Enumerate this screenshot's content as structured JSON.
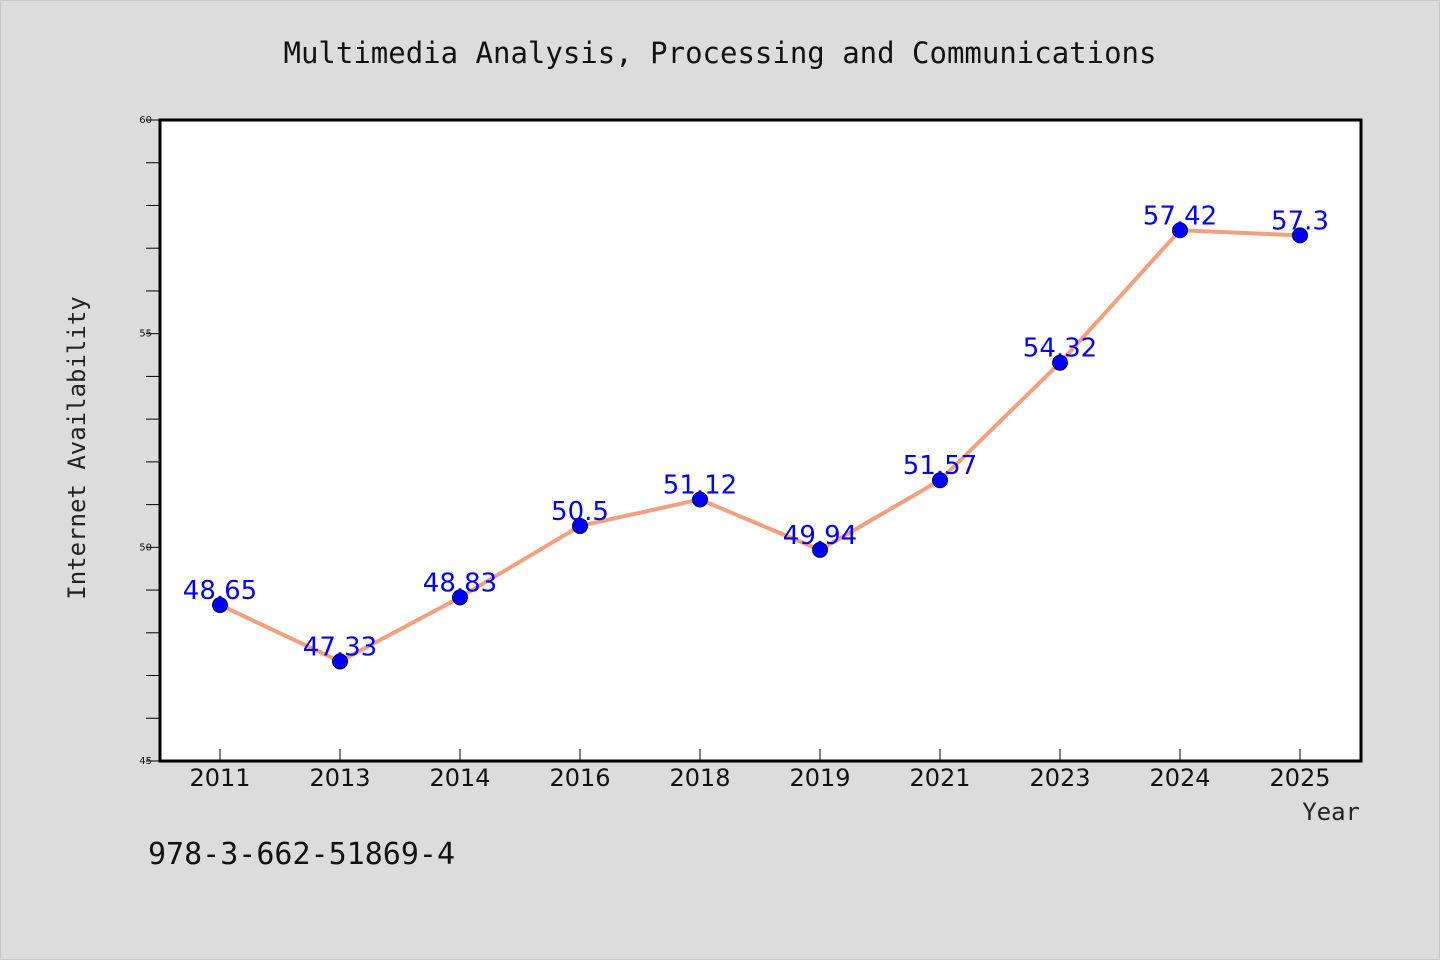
{
  "chart_data": {
    "type": "line",
    "title": "Multimedia Analysis, Processing and Communications",
    "xlabel": "Year",
    "ylabel": "Internet Availability",
    "categories": [
      "2011",
      "2013",
      "2014",
      "2016",
      "2018",
      "2019",
      "2021",
      "2023",
      "2024",
      "2025"
    ],
    "series": [
      {
        "values": [
          48.65,
          47.33,
          48.83,
          50.5,
          51.12,
          49.94,
          51.57,
          54.32,
          57.42,
          57.3
        ],
        "data_labels": [
          "48.65",
          "47.33",
          "48.83",
          "50.5",
          "51.12",
          "49.94",
          "51.57",
          "54.32",
          "57.42",
          "57.3"
        ],
        "line_color": "#f4a07e",
        "marker_color": "#0000ff"
      }
    ],
    "ylim": [
      45,
      60
    ],
    "yticks": [
      "45",
      "50",
      "55",
      "60"
    ],
    "yticks_values": [
      45,
      50,
      55,
      60
    ],
    "grid": false,
    "legend": "none"
  },
  "footer": {
    "isbn": "978-3-662-51869-4"
  },
  "colors": {
    "background": "#dcdcdc",
    "plot_background": "#ffffff",
    "line": "#f4a07e",
    "marker": "#0000ff",
    "label": "#0000ff"
  }
}
